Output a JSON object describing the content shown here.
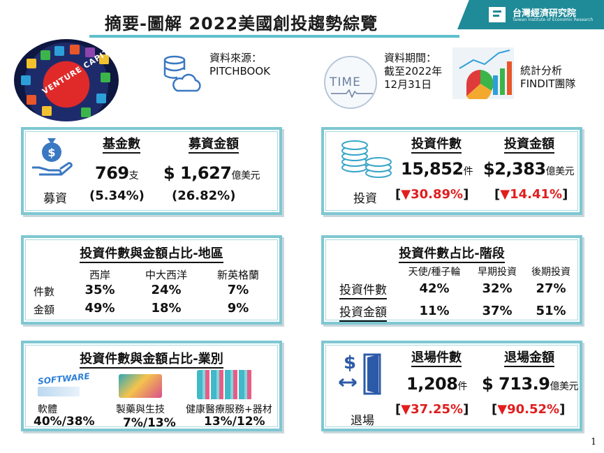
{
  "title": "摘要-圖解 2022美國創投趨勢綜覽",
  "brand": {
    "name": "台灣經濟研究院",
    "sub": "Taiwan Institute of Economic Research"
  },
  "vc_image_text": "VENTURE CAPITAL",
  "source": {
    "label": "資料來源：",
    "value": "PITCHBOOK"
  },
  "period": {
    "logo_text": "TIME",
    "label": "資料期間：",
    "line2": "截至2022年",
    "line3": "12月31日"
  },
  "analysis": {
    "line1": "統計分析",
    "line2": "FINDIT團隊"
  },
  "fundraising": {
    "label": "募資",
    "col1": {
      "header": "基金數",
      "value": "769",
      "unit": "支",
      "pct": "(5.34%)"
    },
    "col2": {
      "header": "募資金額",
      "value": "$ 1,627",
      "unit": "億美元",
      "pct": "(26.82%)"
    }
  },
  "investment": {
    "label": "投資",
    "col1": {
      "header": "投資件數",
      "value": "15,852",
      "unit": "件",
      "pct": "▼30.89%"
    },
    "col2": {
      "header": "投資金額",
      "value": "$2,383",
      "unit": "億美元",
      "pct": "▼14.41%"
    }
  },
  "region": {
    "title": "投資件數與金額占比-地區",
    "columns": [
      "西岸",
      "中大西洋",
      "新英格蘭"
    ],
    "rows": [
      {
        "label": "件數",
        "values": [
          "35%",
          "24%",
          "7%"
        ]
      },
      {
        "label": "金額",
        "values": [
          "49%",
          "18%",
          "9%"
        ]
      }
    ]
  },
  "stage": {
    "title": "投資件數占比-階段",
    "columns": [
      "天使/種子輪",
      "早期投資",
      "後期投資"
    ],
    "rows": [
      {
        "label": "投資件數",
        "values": [
          "42%",
          "32%",
          "27%"
        ]
      },
      {
        "label": "投資金額",
        "values": [
          "11%",
          "37%",
          "51%"
        ]
      }
    ]
  },
  "industry": {
    "title": "投資件數與金額占比-業別",
    "software_logo": "SOFTWARE",
    "items": [
      {
        "label": "軟體",
        "value": "40%/38%"
      },
      {
        "label": "製藥與生技",
        "value": "7%/13%"
      },
      {
        "label": "健康醫療服務+器材",
        "value": "13%/12%"
      }
    ]
  },
  "exit": {
    "label": "退場",
    "col1": {
      "header": "退場件數",
      "value": "1,208",
      "unit": "件",
      "pct": "▼37.25%"
    },
    "col2": {
      "header": "退場金額",
      "value": "$ 713.9",
      "unit": "億美元",
      "pct": "▼90.52%"
    }
  },
  "page_number": "1",
  "colors": {
    "accent": "#7ec7d2",
    "brand": "#1f8a98",
    "down": "#e11d1d",
    "icon_blue": "#3a78c2"
  }
}
